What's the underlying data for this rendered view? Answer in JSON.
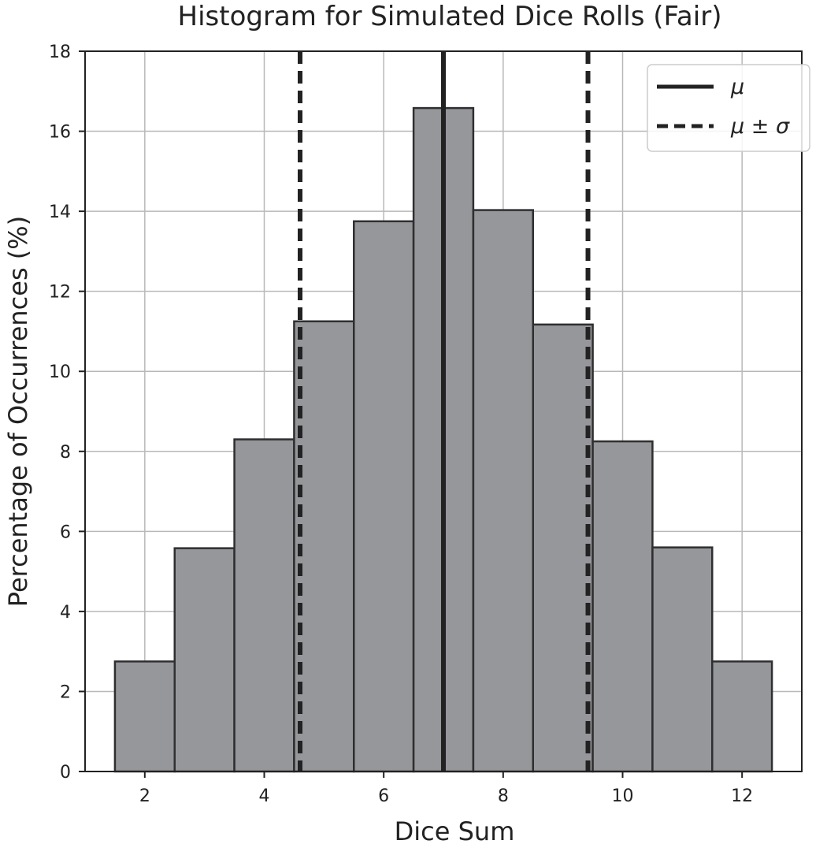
{
  "chart_data": {
    "type": "bar",
    "title": "Histogram for Simulated Dice Rolls (Fair)",
    "xlabel": "Dice Sum",
    "ylabel": "Percentage of Occurrences (%)",
    "xlim": [
      1.0,
      13.0
    ],
    "ylim": [
      0,
      18
    ],
    "x_ticks": [
      2,
      4,
      6,
      8,
      10,
      12
    ],
    "y_ticks": [
      0,
      2,
      4,
      6,
      8,
      10,
      12,
      14,
      16,
      18
    ],
    "grid": true,
    "bin_width": 1,
    "categories": [
      2,
      3,
      4,
      5,
      6,
      7,
      8,
      9,
      10,
      11,
      12
    ],
    "values": [
      2.75,
      5.58,
      8.3,
      11.25,
      13.75,
      16.58,
      14.03,
      11.17,
      8.25,
      5.6,
      2.75
    ],
    "mean": 7.0,
    "std_lines": [
      4.6,
      9.42
    ],
    "legend": {
      "position": "top-right",
      "entries": [
        {
          "label": "μ",
          "style": "solid"
        },
        {
          "label": "μ ± σ",
          "style": "dashed"
        }
      ]
    },
    "colors": {
      "bar_fill": "#96979b",
      "bar_edge": "#2f2f2f",
      "line": "#222222",
      "grid": "#b8b8b8"
    }
  }
}
